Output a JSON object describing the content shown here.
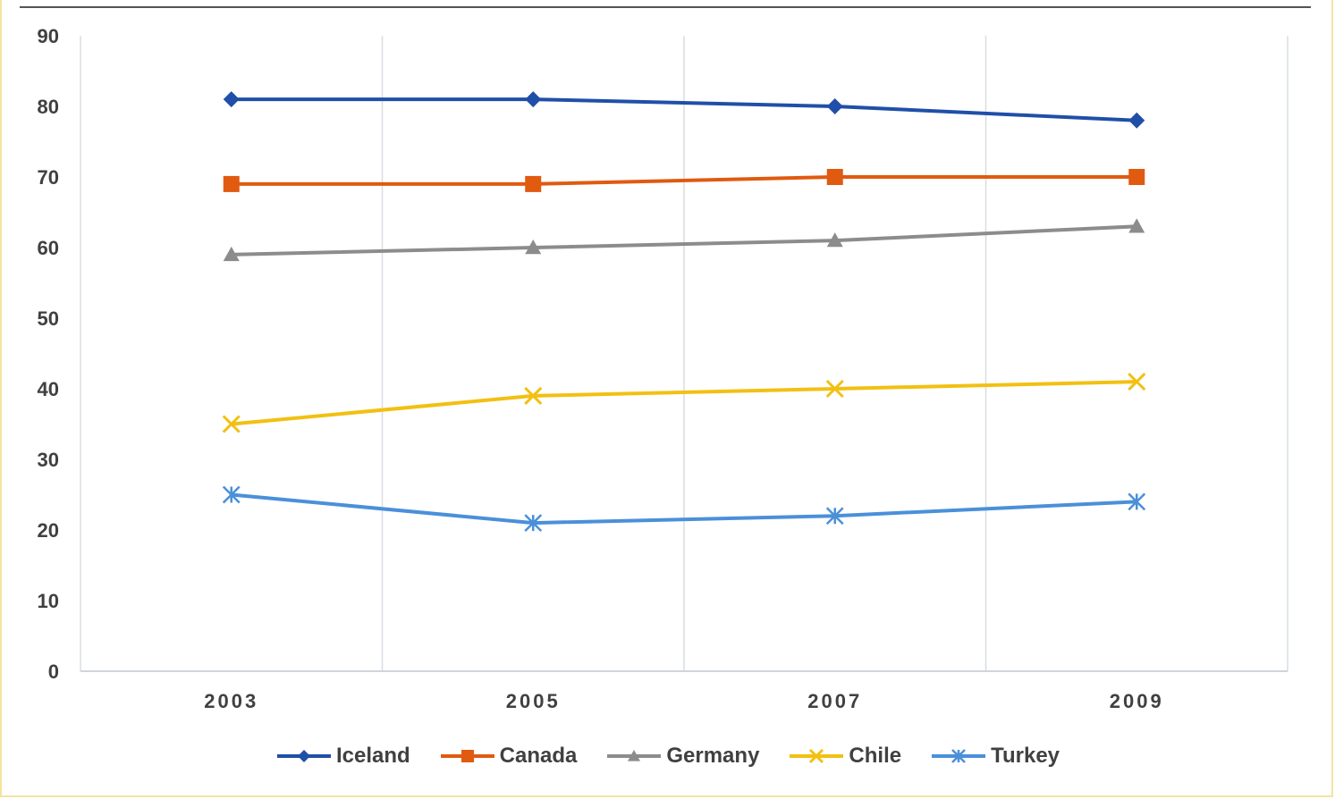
{
  "chart_data": {
    "type": "line",
    "title": "",
    "xlabel": "",
    "ylabel": "",
    "categories": [
      "2003",
      "2005",
      "2007",
      "2009"
    ],
    "ylim": [
      0,
      90
    ],
    "yticks": [
      0,
      10,
      20,
      30,
      40,
      50,
      60,
      70,
      80,
      90
    ],
    "grid": "vertical",
    "legend": "bottom",
    "series": [
      {
        "name": "Iceland",
        "values": [
          81,
          81,
          80,
          78
        ],
        "color": "#1f4fa8",
        "marker": "diamond"
      },
      {
        "name": "Canada",
        "values": [
          69,
          69,
          70,
          70
        ],
        "color": "#e05a10",
        "marker": "square"
      },
      {
        "name": "Germany",
        "values": [
          59,
          60,
          61,
          63
        ],
        "color": "#8c8c8c",
        "marker": "triangle"
      },
      {
        "name": "Chile",
        "values": [
          35,
          39,
          40,
          41
        ],
        "color": "#f2c012",
        "marker": "x"
      },
      {
        "name": "Turkey",
        "values": [
          25,
          21,
          22,
          24
        ],
        "color": "#4a90d9",
        "marker": "star"
      }
    ]
  }
}
